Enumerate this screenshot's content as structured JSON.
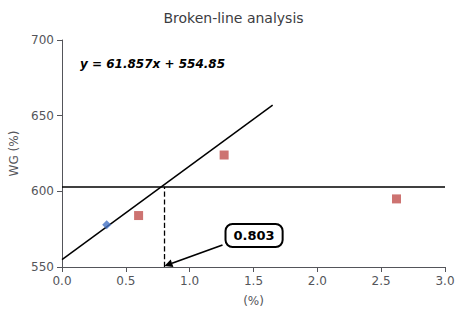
{
  "chart_data": {
    "type": "scatter",
    "title": "Broken-line analysis",
    "x_label": "(%)",
    "y_label": "WG (%)",
    "xlim": [
      0.0,
      3.0
    ],
    "ylim": [
      550,
      700
    ],
    "xticks": [
      {
        "value": 0,
        "label": "0.0"
      },
      0.5,
      {
        "value": 1,
        "label": "1.0"
      },
      1.5,
      {
        "value": 2,
        "label": "2.0"
      },
      2.5,
      {
        "value": 3,
        "label": "3.0"
      }
    ],
    "yticks": [
      550,
      600,
      650,
      700
    ],
    "grid": false,
    "series": [
      {
        "type": "scatter",
        "marker": "square",
        "color": "#C0504D",
        "x": [
          0.6,
          1.27,
          2.62
        ],
        "y": [
          584,
          624,
          595
        ]
      },
      {
        "type": "scatter",
        "marker": "diamond",
        "color": "#4472C4",
        "x": [
          0.35
        ],
        "y": [
          578
        ]
      },
      {
        "type": "line",
        "line_style": "solid",
        "color": "#000000",
        "x": [
          0.0,
          1.65
        ],
        "y": [
          554.85,
          656.91405
        ]
      }
    ],
    "hline_y": 603,
    "hline_color": "#000000",
    "breakpoint_x": 0.803,
    "breakpoint_line_style": "dashed",
    "equation": "y = 61.857x + 554.85",
    "annotation_text": "0.803"
  }
}
